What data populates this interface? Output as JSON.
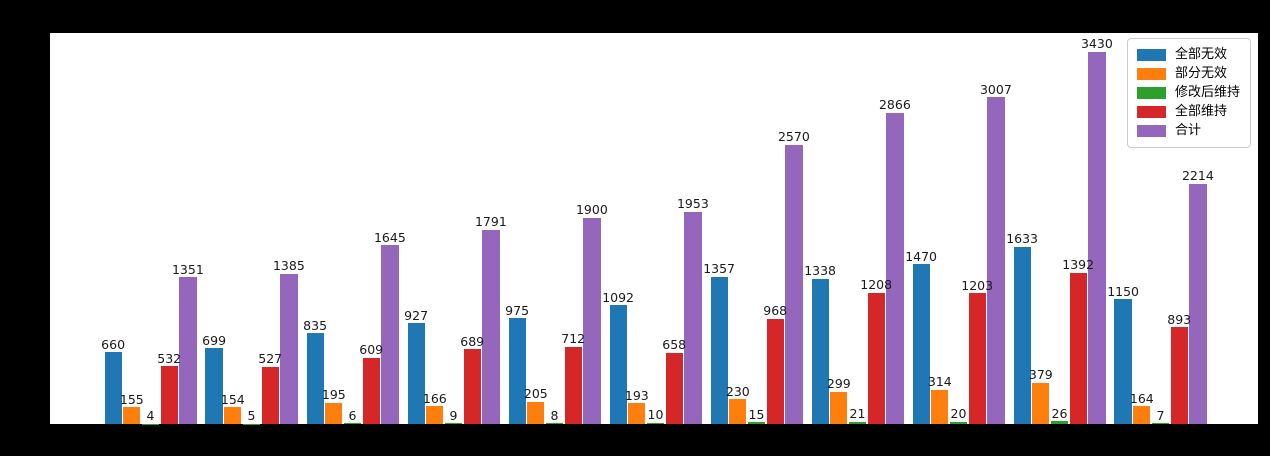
{
  "figure": {
    "background_color": "#000000",
    "plot_background_color": "#ffffff"
  },
  "chart_data": {
    "type": "bar",
    "n_groups": 11,
    "categories": [
      "",
      "",
      "",
      "",
      "",
      "",
      "",
      "",
      "",
      "",
      ""
    ],
    "series": [
      {
        "key": "all-invalid",
        "name": "全部无效",
        "color": "#1f77b4",
        "values": [
          660,
          699,
          835,
          927,
          975,
          1092,
          1357,
          1338,
          1470,
          1633,
          1150
        ]
      },
      {
        "key": "partially-invalid",
        "name": "部分无效",
        "color": "#ff7f0e",
        "values": [
          155,
          154,
          195,
          166,
          205,
          193,
          230,
          299,
          314,
          379,
          164
        ]
      },
      {
        "key": "maintained-after-amendment",
        "name": "修改后维持",
        "color": "#2ca02c",
        "values": [
          4,
          5,
          6,
          9,
          8,
          10,
          15,
          21,
          20,
          26,
          7
        ]
      },
      {
        "key": "fully-maintained",
        "name": "全部维持",
        "color": "#d62728",
        "values": [
          532,
          527,
          609,
          689,
          712,
          658,
          968,
          1208,
          1203,
          1392,
          893
        ]
      },
      {
        "key": "total",
        "name": "合计",
        "color": "#9467bd",
        "values": [
          1351,
          1385,
          1645,
          1791,
          1900,
          1953,
          2570,
          2866,
          3007,
          3430,
          2214
        ]
      }
    ],
    "ylim": [
      0,
      3600
    ],
    "grid": false,
    "legend_position": "upper-right",
    "value_labels": true,
    "x_tick_labels_visible": false,
    "y_tick_labels_visible": false
  }
}
